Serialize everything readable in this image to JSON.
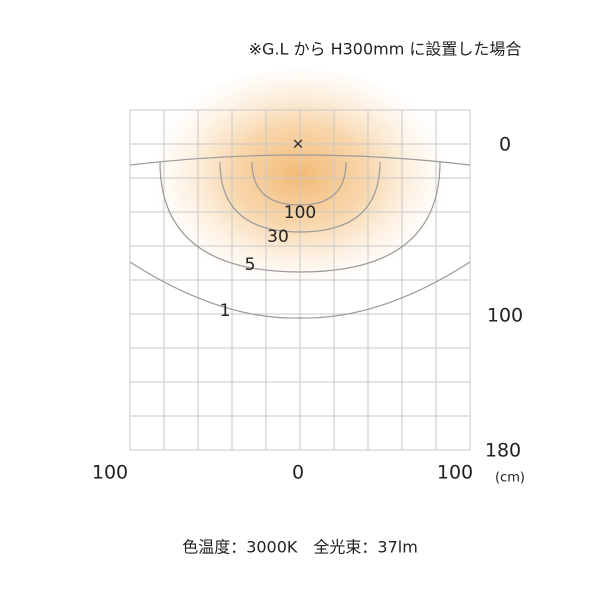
{
  "header": {
    "title": "※G.L から H300mm に設置した場合"
  },
  "diagram": {
    "center_marker": "×",
    "contour_labels": [
      "100",
      "30",
      "5",
      "1"
    ],
    "vertical_axis": {
      "labels": [
        "0",
        "100",
        "180"
      ],
      "unit": "(cm)"
    },
    "horizontal_axis": {
      "labels": [
        "100",
        "0",
        "100"
      ]
    }
  },
  "footer": {
    "caption": "色温度：3000K　全光束：37lm"
  }
}
